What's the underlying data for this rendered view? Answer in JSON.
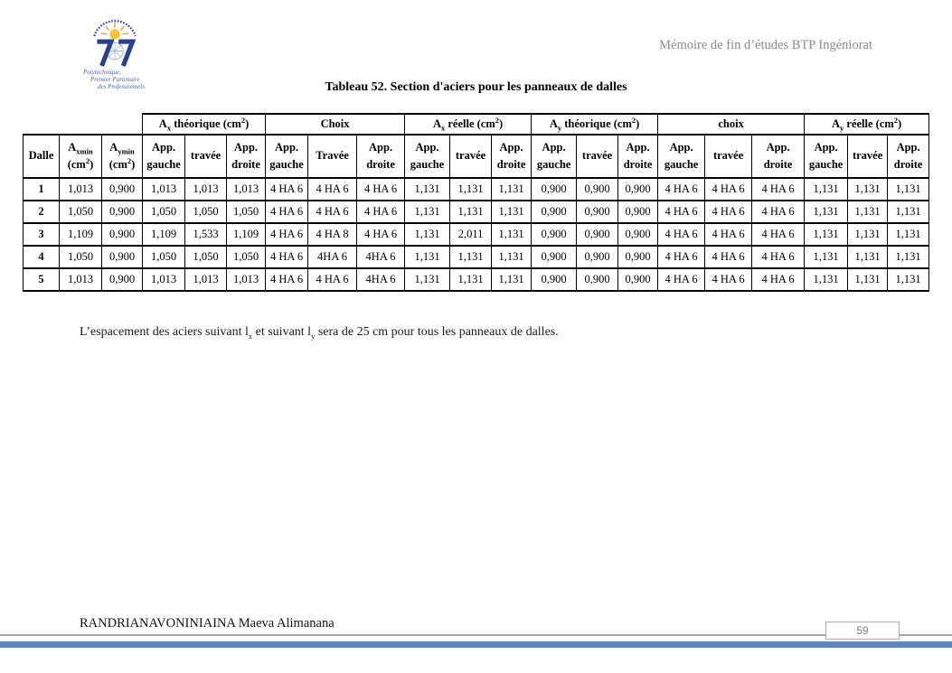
{
  "page": {
    "accent_bar_color": "#5f88bc"
  },
  "header": {
    "right_text": "Mémoire de fin d’études BTP Ingéniorat"
  },
  "logo": {
    "caption_lines": [
      "Polytechnique,",
      "Premier Partenaire",
      "des Professionnels"
    ]
  },
  "table": {
    "title": "Tableau 52. Section d'aciers pour les panneaux de dalles",
    "fixed_columns": [
      "Dalle",
      "A_{xmin}\n(cm^2)",
      "A_{ymin}\n(cm^2)"
    ],
    "groups": [
      {
        "label": "A_{x} théorique (cm^2)",
        "sub": [
          "App.\ngauche",
          "travée",
          "App.\ndroite"
        ]
      },
      {
        "label": "Choix",
        "sub": [
          "App.\ngauche",
          "Travée",
          "App.\ndroite"
        ]
      },
      {
        "label": "A_{x} réelle (cm^2)",
        "sub": [
          "App.\ngauche",
          "travée",
          "App.\ndroite"
        ]
      },
      {
        "label": "A_{y} théorique (cm^2)",
        "sub": [
          "App.\ngauche",
          "travée",
          "App.\ndroite"
        ]
      },
      {
        "label": "choix",
        "sub": [
          "App.\ngauche",
          "travée",
          "App.\ndroite"
        ]
      },
      {
        "label": "A_{y} réelle (cm^2)",
        "sub": [
          "App.\ngauche",
          "travée",
          "App.\ndroite"
        ]
      }
    ],
    "rows": [
      [
        "1",
        "1,013",
        "0,900",
        "1,013",
        "1,013",
        "1,013",
        "4 HA 6",
        "4 HA 6",
        "4 HA 6",
        "1,131",
        "1,131",
        "1,131",
        "0,900",
        "0,900",
        "0,900",
        "4 HA 6",
        "4 HA 6",
        "4 HA 6",
        "1,131",
        "1,131",
        "1,131"
      ],
      [
        "2",
        "1,050",
        "0,900",
        "1,050",
        "1,050",
        "1,050",
        "4 HA 6",
        "4 HA 6",
        "4 HA 6",
        "1,131",
        "1,131",
        "1,131",
        "0,900",
        "0,900",
        "0,900",
        "4 HA 6",
        "4 HA 6",
        "4 HA 6",
        "1,131",
        "1,131",
        "1,131"
      ],
      [
        "3",
        "1,109",
        "0,900",
        "1,109",
        "1,533",
        "1,109",
        "4 HA 6",
        "4 HA 8",
        "4 HA 6",
        "1,131",
        "2,011",
        "1,131",
        "0,900",
        "0,900",
        "0,900",
        "4 HA 6",
        "4 HA 6",
        "4 HA 6",
        "1,131",
        "1,131",
        "1,131"
      ],
      [
        "4",
        "1,050",
        "0,900",
        "1,050",
        "1,050",
        "1,050",
        "4 HA 6",
        "4HA 6",
        "4HA 6",
        "1,131",
        "1,131",
        "1,131",
        "0,900",
        "0,900",
        "0,900",
        "4 HA 6",
        "4 HA 6",
        "4 HA 6",
        "1,131",
        "1,131",
        "1,131"
      ],
      [
        "5",
        "1,013",
        "0,900",
        "1,013",
        "1,013",
        "1,013",
        "4 HA 6",
        "4 HA 6",
        "4HA 6",
        "1,131",
        "1,131",
        "1,131",
        "0,900",
        "0,900",
        "0,900",
        "4 HA 6",
        "4 HA 6",
        "4 HA 6",
        "1,131",
        "1,131",
        "1,131"
      ]
    ]
  },
  "note": "L’espacement des aciers suivant l_{x} et suivant l_{y} sera de 25 cm pour tous les panneaux de dalles.",
  "footer": {
    "author": "RANDRIANAVONINIAINA Maeva Alimanana",
    "page_number": "59"
  }
}
